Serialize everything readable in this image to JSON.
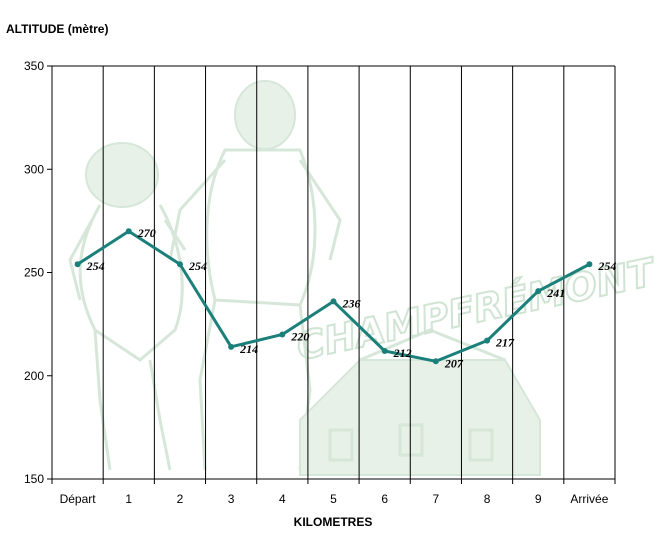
{
  "watermark_text": "CHAMPFRÉMONT",
  "chart_data": {
    "type": "line",
    "title": "",
    "ylabel": "ALTITUDE (mètre)",
    "xlabel": "KILOMETRES",
    "categories": [
      "Départ",
      "1",
      "2",
      "3",
      "4",
      "5",
      "6",
      "7",
      "8",
      "9",
      "Arrivée"
    ],
    "values": [
      254,
      270,
      254,
      214,
      220,
      236,
      212,
      207,
      217,
      241,
      254
    ],
    "data_labels": [
      "254",
      "270",
      "254",
      "214",
      "220",
      "236",
      "212",
      "207",
      "217",
      "241",
      "254"
    ],
    "ylim": [
      150,
      350
    ],
    "yticks": [
      "150",
      "200",
      "250",
      "300",
      "350"
    ],
    "grid": "vertical",
    "line_color": "#1b7f7a",
    "axis_color": "#000000"
  }
}
